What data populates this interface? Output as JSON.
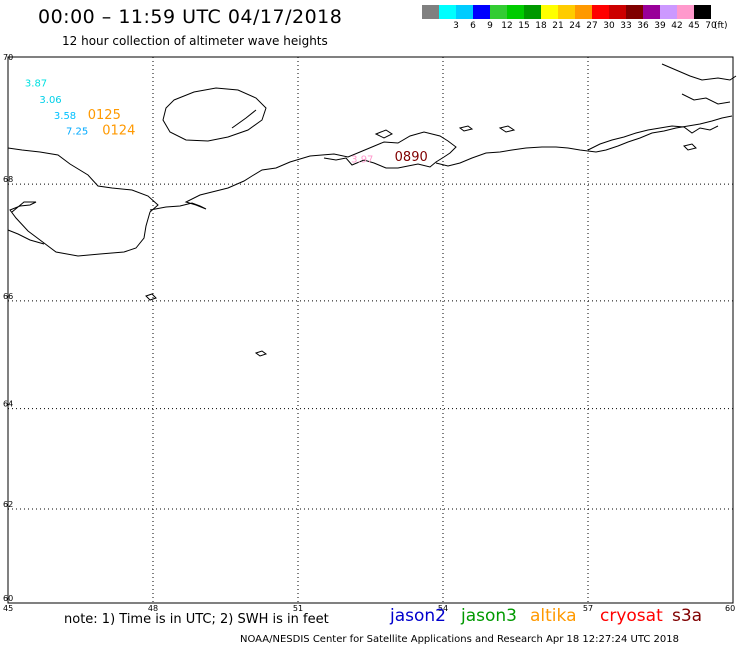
{
  "header": {
    "title": "00:00 – 11:59 UTC 04/17/2018",
    "subtitle": "12 hour collection of altimeter wave heights"
  },
  "legend": {
    "unit": "(ft)",
    "bins": [
      {
        "color": "#808080",
        "label": ""
      },
      {
        "color": "#00ffff",
        "label": "3"
      },
      {
        "color": "#00ccff",
        "label": "6"
      },
      {
        "color": "#0000ff",
        "label": "9"
      },
      {
        "color": "#33cc33",
        "label": "12"
      },
      {
        "color": "#00cc00",
        "label": "15"
      },
      {
        "color": "#009900",
        "label": "18"
      },
      {
        "color": "#ffff00",
        "label": "21"
      },
      {
        "color": "#ffcc00",
        "label": "24"
      },
      {
        "color": "#ff9900",
        "label": "27"
      },
      {
        "color": "#ff0000",
        "label": "30"
      },
      {
        "color": "#cc0000",
        "label": "33"
      },
      {
        "color": "#800000",
        "label": "36"
      },
      {
        "color": "#990099",
        "label": "39"
      },
      {
        "color": "#cc99ff",
        "label": "42"
      },
      {
        "color": "#ff99cc",
        "label": "45"
      },
      {
        "color": "#000000",
        "label": "70"
      }
    ]
  },
  "map": {
    "lon_range": [
      45,
      60
    ],
    "lat_range": [
      60,
      70
    ],
    "lon_ticks": [
      "45",
      "48",
      "51",
      "54",
      "57",
      "60"
    ],
    "lat_ticks": [
      {
        "lat": 70,
        "label": "70"
      },
      {
        "lat": 68,
        "label": "68"
      },
      {
        "lat": 66,
        "label": "66"
      },
      {
        "lat": 64,
        "label": "64"
      },
      {
        "lat": 62,
        "label": "62"
      },
      {
        "lat": 60,
        "label": "60"
      }
    ],
    "observations": [
      {
        "text": "3.87",
        "lon": 45.35,
        "lat": 69.55,
        "color": "#00e0e0"
      },
      {
        "text": "3.06",
        "lon": 45.65,
        "lat": 69.3,
        "color": "#00d0e8"
      },
      {
        "text": "3.58",
        "lon": 45.95,
        "lat": 69.05,
        "color": "#00c0ff"
      },
      {
        "text": "0125",
        "lon": 46.65,
        "lat": 69.05,
        "color": "#ff9900"
      },
      {
        "text": "7.25",
        "lon": 46.2,
        "lat": 68.8,
        "color": "#00aaff"
      },
      {
        "text": "0124",
        "lon": 46.95,
        "lat": 68.8,
        "color": "#ff9900"
      },
      {
        "text": "0890",
        "lon": 53.0,
        "lat": 68.38,
        "color": "#800000"
      },
      {
        "text": "3.97",
        "lon": 52.1,
        "lat": 68.35,
        "color": "#ff99cc"
      }
    ]
  },
  "note": "note: 1) Time is in UTC; 2) SWH is in feet",
  "satellites": [
    {
      "name": "jason2",
      "color": "#0000cc"
    },
    {
      "name": "jason3",
      "color": "#009900"
    },
    {
      "name": "altika",
      "color": "#ff9900"
    },
    {
      "name": "cryosat",
      "color": "#ff0000"
    },
    {
      "name": "s3a",
      "color": "#800000"
    }
  ],
  "footer": "NOAA/NESDIS Center for Satellite Applications and Research    Apr 18 12:27:24 UTC 2018"
}
